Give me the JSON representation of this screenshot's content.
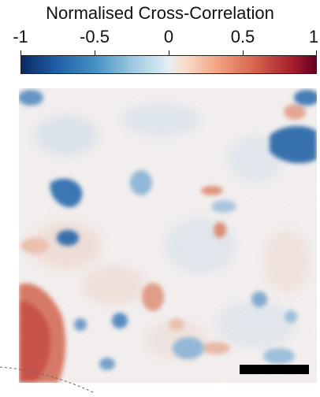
{
  "title": "Normalised Cross-Correlation",
  "colorbar": {
    "ticks": [
      "-1",
      "-0.5",
      "0",
      "0.5",
      "1"
    ],
    "tick_values": [
      -1,
      -0.5,
      0,
      0.5,
      1
    ],
    "range": [
      -1,
      1
    ],
    "colormap": "RdBu_r",
    "colors": {
      "negative_extreme": "#0b2a61",
      "zero": "#e4eef5",
      "positive_extreme": "#67001f"
    }
  },
  "heatmap": {
    "description_icon": "correlation-map",
    "scale_bar_color": "#000000"
  }
}
